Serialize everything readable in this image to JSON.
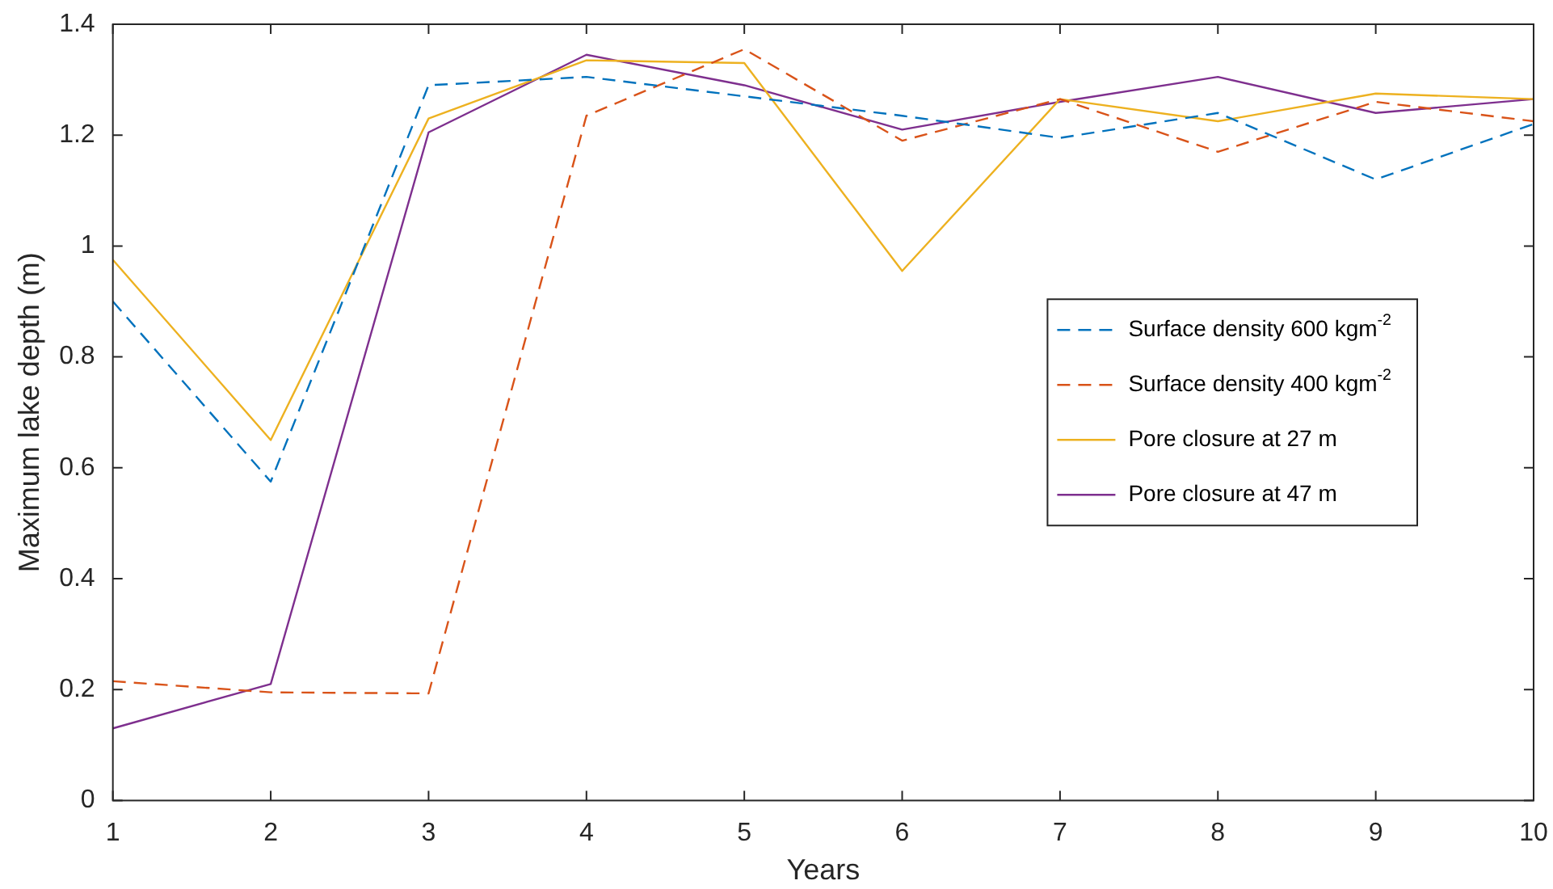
{
  "chart_data": {
    "type": "line",
    "xlabel": "Years",
    "ylabel": "Maximum lake depth (m)",
    "x": [
      1,
      2,
      3,
      4,
      5,
      6,
      7,
      8,
      9,
      10
    ],
    "series": [
      {
        "name": "Surface density 600 kgm$^{-2}$",
        "color": "#0072bd",
        "line_style": "dashed",
        "values": [
          0.9,
          0.575,
          1.29,
          1.305,
          1.27,
          1.235,
          1.195,
          1.24,
          1.12,
          1.22
        ]
      },
      {
        "name": "Surface density 400 kgm$^{-2}$",
        "color": "#d95319",
        "line_style": "dashed",
        "values": [
          0.215,
          0.195,
          0.193,
          1.235,
          1.355,
          1.19,
          1.265,
          1.17,
          1.26,
          1.225
        ]
      },
      {
        "name": "Pore closure at 27 m",
        "color": "#edb120",
        "line_style": "solid",
        "values": [
          0.975,
          0.65,
          1.23,
          1.335,
          1.33,
          0.955,
          1.265,
          1.225,
          1.275,
          1.265
        ]
      },
      {
        "name": "Pore closure at 47 m",
        "color": "#7e2f8e",
        "line_style": "solid",
        "values": [
          0.13,
          0.21,
          1.205,
          1.345,
          1.29,
          1.21,
          1.26,
          1.305,
          1.24,
          1.265
        ]
      }
    ],
    "xlim": [
      1,
      10
    ],
    "xticks": [
      1,
      2,
      3,
      4,
      5,
      6,
      7,
      8,
      9,
      10
    ],
    "ylim": [
      0,
      1.4
    ],
    "yticks": [
      0,
      0.2,
      0.4,
      0.6,
      0.8,
      1,
      1.2,
      1.4
    ],
    "grid": false,
    "legend": "right",
    "marker": "none"
  }
}
